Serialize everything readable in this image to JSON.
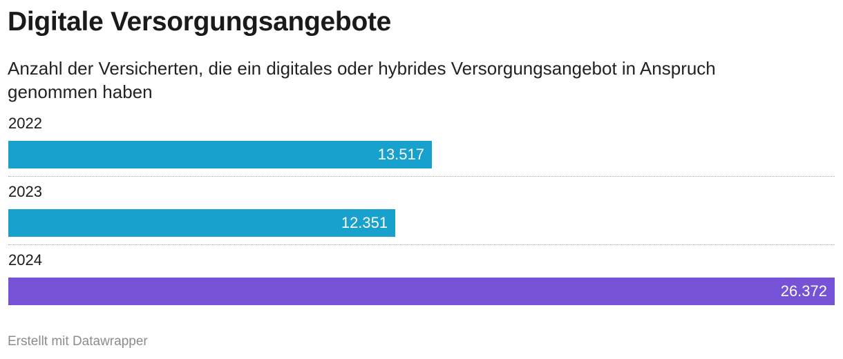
{
  "chart_data": {
    "type": "bar",
    "orientation": "horizontal",
    "title": "Digitale Versorgungsangebote",
    "subtitle": "Anzahl der Versicherten, die ein digitales oder hybrides Versorgungsangebot in Anspruch genommen haben",
    "categories": [
      "2022",
      "2023",
      "2024"
    ],
    "values": [
      13517,
      12351,
      26372
    ],
    "value_labels": [
      "13.517",
      "12.351",
      "26.372"
    ],
    "colors": [
      "#18a1cd",
      "#18a1cd",
      "#7552d6"
    ],
    "xlim": [
      0,
      26372
    ],
    "grid": false,
    "legend": "none"
  },
  "footer": {
    "credit": "Erstellt mit Datawrapper"
  }
}
